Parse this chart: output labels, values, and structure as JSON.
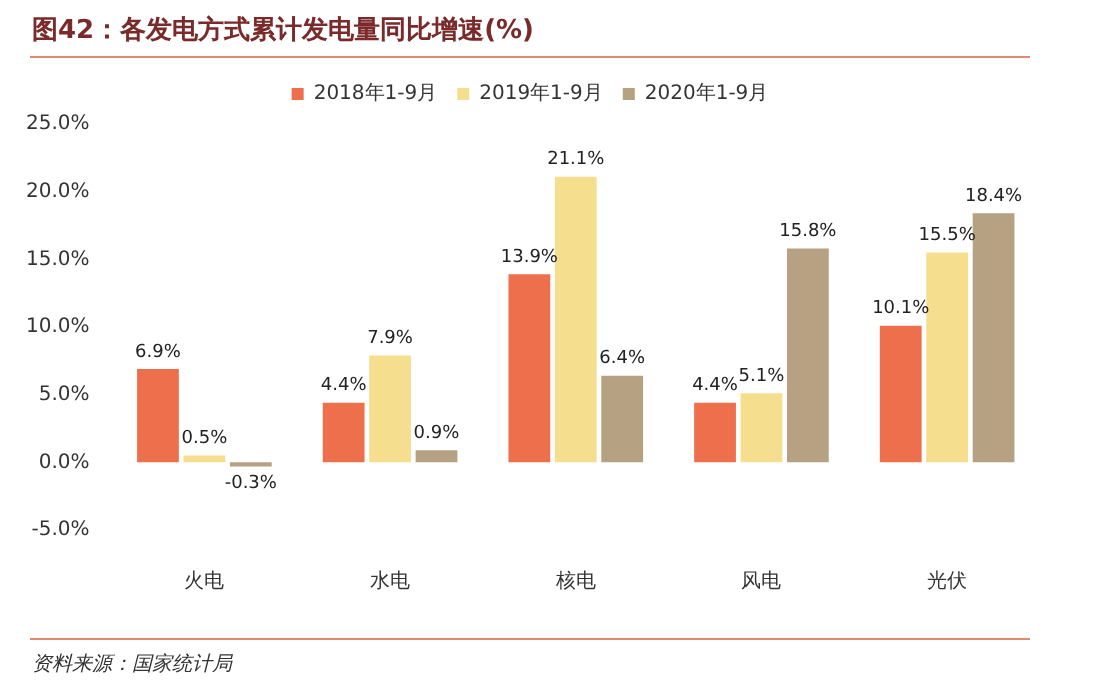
{
  "chart_data": {
    "type": "bar",
    "title": "图42：各发电方式累计发电量同比增速(%)",
    "categories": [
      "火电",
      "水电",
      "核电",
      "风电",
      "光伏"
    ],
    "series": [
      {
        "name": "2018年1-9月",
        "color": "#ee6f4b",
        "values": [
          6.9,
          4.4,
          13.9,
          4.4,
          10.1
        ],
        "value_labels": [
          "6.9%",
          "4.4%",
          "13.9%",
          "4.4%",
          "10.1%"
        ]
      },
      {
        "name": "2019年1-9月",
        "color": "#f6de8f",
        "values": [
          0.5,
          7.9,
          21.1,
          5.1,
          15.5
        ],
        "value_labels": [
          "0.5%",
          "7.9%",
          "21.1%",
          "5.1%",
          "15.5%"
        ]
      },
      {
        "name": "2020年1-9月",
        "color": "#b6a283",
        "values": [
          -0.3,
          0.9,
          6.4,
          15.8,
          18.4
        ],
        "value_labels": [
          "-0.3%",
          "0.9%",
          "6.4%",
          "15.8%",
          "18.4%"
        ]
      }
    ],
    "ylim": [
      -5,
      25
    ],
    "yticks": [
      {
        "value": -5,
        "label": "-5.0%"
      },
      {
        "value": 0,
        "label": "0.0%"
      },
      {
        "value": 5,
        "label": "5.0%"
      },
      {
        "value": 10,
        "label": "10.0%"
      },
      {
        "value": 15,
        "label": "15.0%"
      },
      {
        "value": 20,
        "label": "20.0%"
      },
      {
        "value": 25,
        "label": "25.0%"
      }
    ],
    "grid": false,
    "legend": "top",
    "annotations": [
      "资料来源：国家统计局"
    ]
  }
}
